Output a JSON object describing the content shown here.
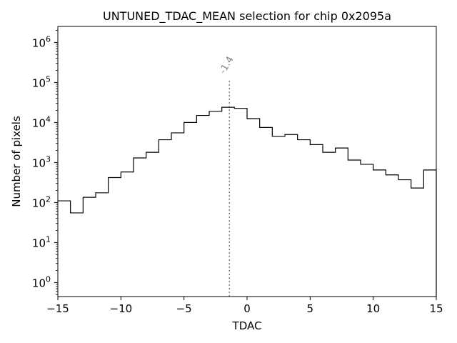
{
  "chart_data": {
    "type": "histogram-step",
    "title": "UNTUNED_TDAC_MEAN selection for chip 0x2095a",
    "xlabel": "TDAC",
    "ylabel": "Number of pixels",
    "xlim": [
      -15,
      15
    ],
    "ylim_log10": [
      -0.35,
      6.4
    ],
    "yscale": "log",
    "grid": false,
    "x_ticks": [
      {
        "value": -15,
        "label": "−15"
      },
      {
        "value": -10,
        "label": "−10"
      },
      {
        "value": -5,
        "label": "−5"
      },
      {
        "value": 0,
        "label": "0"
      },
      {
        "value": 5,
        "label": "5"
      },
      {
        "value": 10,
        "label": "10"
      },
      {
        "value": 15,
        "label": "15"
      }
    ],
    "y_ticks": [
      {
        "exp": 0,
        "base": "10",
        "sup": "0"
      },
      {
        "exp": 1,
        "base": "10",
        "sup": "1"
      },
      {
        "exp": 2,
        "base": "10",
        "sup": "2"
      },
      {
        "exp": 3,
        "base": "10",
        "sup": "3"
      },
      {
        "exp": 4,
        "base": "10",
        "sup": "4"
      },
      {
        "exp": 5,
        "base": "10",
        "sup": "5"
      },
      {
        "exp": 6,
        "base": "10",
        "sup": "6"
      }
    ],
    "bins": {
      "edges": [
        -15,
        -14,
        -13,
        -12,
        -11,
        -10,
        -9,
        -8,
        -7,
        -6,
        -5,
        -4,
        -3,
        -2,
        -1,
        0,
        1,
        2,
        3,
        4,
        5,
        6,
        7,
        8,
        9,
        10,
        11,
        12,
        13,
        14,
        15
      ],
      "counts": [
        110,
        55,
        135,
        175,
        420,
        580,
        1300,
        1800,
        3700,
        5500,
        10000,
        15000,
        19000,
        24000,
        22500,
        12500,
        7500,
        4500,
        5000,
        3700,
        2800,
        1800,
        2300,
        1150,
        900,
        650,
        490,
        370,
        230,
        650
      ]
    },
    "vline": {
      "x": -1.4,
      "label": "-1.4",
      "style": "dotted",
      "color": "#808080"
    },
    "colors": {
      "line": "#000000",
      "vline": "#808080",
      "background": "#ffffff"
    }
  }
}
